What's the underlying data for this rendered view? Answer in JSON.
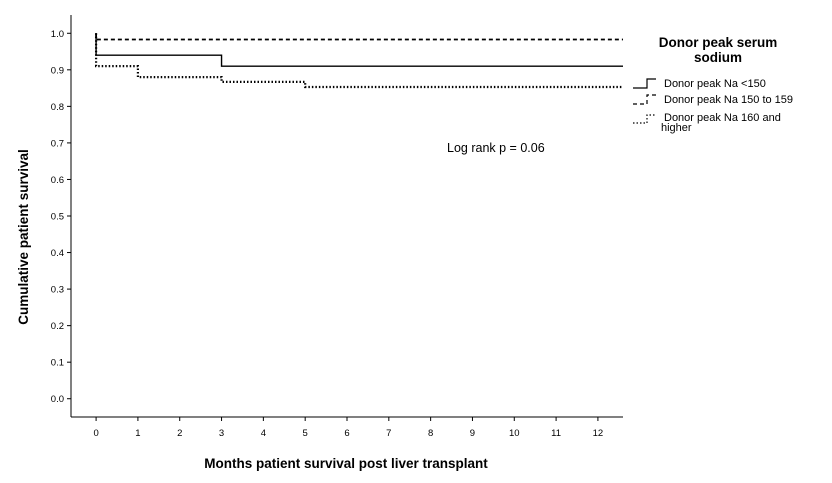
{
  "chart_data": {
    "type": "line",
    "step": true,
    "xlabel": "Months patient survival post liver transplant",
    "ylabel": "Cumulative patient survival",
    "xlim": [
      -0.6,
      12.6
    ],
    "ylim": [
      -0.05,
      1.05
    ],
    "x_ticks": [
      "0",
      "1",
      "2",
      "3",
      "4",
      "5",
      "6",
      "7",
      "8",
      "9",
      "10",
      "11",
      "12"
    ],
    "y_ticks": [
      "0.0",
      "0.1",
      "0.2",
      "0.3",
      "0.4",
      "0.5",
      "0.6",
      "0.7",
      "0.8",
      "0.9",
      "1.0"
    ],
    "grid": false,
    "legend": {
      "title_line1": "Donor peak serum",
      "title_line2": "sodium",
      "placement": "top-right outside",
      "items": [
        {
          "line1": "Donor peak Na <150",
          "line2": ""
        },
        {
          "line1": "Donor peak Na 150 to 159",
          "line2": ""
        },
        {
          "line1": "Donor peak Na 160 and",
          "line2": "higher"
        }
      ]
    },
    "annotation": "Log rank p = 0.06",
    "series": [
      {
        "name": "Donor peak Na <150",
        "style": "solid",
        "color": "#000000",
        "x": [
          0,
          0,
          3,
          3,
          12.6
        ],
        "y": [
          1.0,
          0.94,
          0.94,
          0.91,
          0.91
        ]
      },
      {
        "name": "Donor peak Na 150 to 159",
        "style": "dashed",
        "color": "#000000",
        "x": [
          0,
          0,
          12.6
        ],
        "y": [
          1.0,
          0.983,
          0.983
        ]
      },
      {
        "name": "Donor peak Na 160 and higher",
        "style": "dotted",
        "color": "#000000",
        "x": [
          0,
          0,
          1,
          1,
          3,
          3,
          5,
          5,
          12.6
        ],
        "y": [
          1.0,
          0.91,
          0.91,
          0.88,
          0.88,
          0.867,
          0.867,
          0.853,
          0.853
        ]
      }
    ]
  }
}
